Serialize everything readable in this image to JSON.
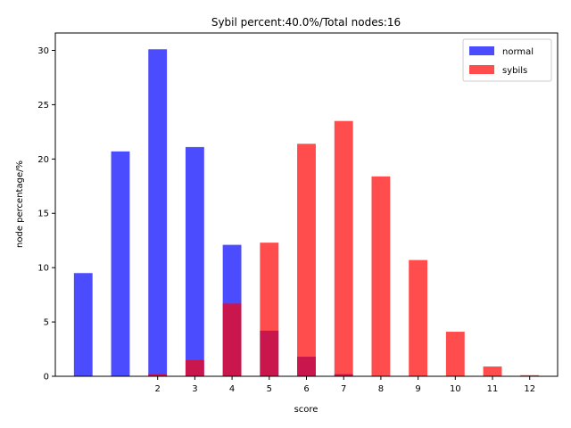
{
  "chart_data": {
    "type": "bar",
    "title": "Sybil percent:40.0%/Total nodes:16",
    "xlabel": "score",
    "ylabel": "node percentage/%",
    "x": [
      0,
      1,
      2,
      3,
      4,
      5,
      6,
      7,
      8,
      9,
      10,
      11,
      12
    ],
    "x_tick_labels": [
      "2",
      "3",
      "4",
      "5",
      "6",
      "7",
      "8",
      "9",
      "10",
      "11",
      "12"
    ],
    "x_tick_values": [
      2,
      3,
      4,
      5,
      6,
      7,
      8,
      9,
      10,
      11,
      12
    ],
    "xlim": [
      -0.75,
      12.75
    ],
    "ylim": [
      0,
      31.6
    ],
    "y_ticks": [
      0,
      5,
      10,
      15,
      20,
      25,
      30
    ],
    "grid": false,
    "legend_position": "upper right",
    "series": [
      {
        "name": "normal",
        "color": "#0000ff",
        "alpha": 0.7,
        "values": [
          9.5,
          20.7,
          30.1,
          21.1,
          12.1,
          4.2,
          1.8,
          0.2,
          0,
          0,
          0,
          0,
          0
        ]
      },
      {
        "name": "sybils",
        "color": "#ff0000",
        "alpha": 0.7,
        "values": [
          0,
          0,
          0.2,
          1.5,
          6.7,
          12.3,
          21.4,
          23.5,
          18.4,
          10.7,
          4.1,
          0.9,
          0.1
        ]
      }
    ]
  }
}
